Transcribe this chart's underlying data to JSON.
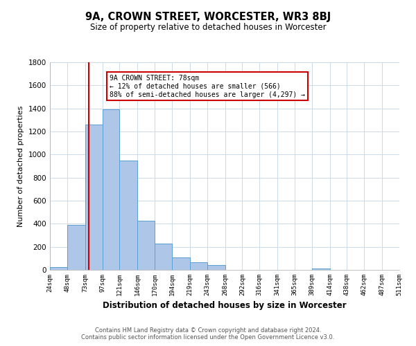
{
  "title": "9A, CROWN STREET, WORCESTER, WR3 8BJ",
  "subtitle": "Size of property relative to detached houses in Worcester",
  "xlabel": "Distribution of detached houses by size in Worcester",
  "ylabel": "Number of detached properties",
  "bin_labels": [
    "24sqm",
    "48sqm",
    "73sqm",
    "97sqm",
    "121sqm",
    "146sqm",
    "170sqm",
    "194sqm",
    "219sqm",
    "243sqm",
    "268sqm",
    "292sqm",
    "316sqm",
    "341sqm",
    "365sqm",
    "389sqm",
    "414sqm",
    "438sqm",
    "462sqm",
    "487sqm",
    "511sqm"
  ],
  "bin_edges": [
    24,
    48,
    73,
    97,
    121,
    146,
    170,
    194,
    219,
    243,
    268,
    292,
    316,
    341,
    365,
    389,
    414,
    438,
    462,
    487,
    511
  ],
  "bar_heights": [
    25,
    390,
    1260,
    1390,
    950,
    425,
    230,
    110,
    65,
    40,
    0,
    0,
    0,
    0,
    0,
    15,
    0,
    0,
    0,
    0
  ],
  "bar_color": "#aec6e8",
  "bar_edge_color": "#5a9fd4",
  "property_line_x": 78,
  "property_line_color": "#cc0000",
  "annotation_title": "9A CROWN STREET: 78sqm",
  "annotation_line1": "← 12% of detached houses are smaller (566)",
  "annotation_line2": "88% of semi-detached houses are larger (4,297) →",
  "annotation_box_color": "#ffffff",
  "annotation_box_edge": "#cc0000",
  "ylim": [
    0,
    1800
  ],
  "yticks": [
    0,
    200,
    400,
    600,
    800,
    1000,
    1200,
    1400,
    1600,
    1800
  ],
  "footer_line1": "Contains HM Land Registry data © Crown copyright and database right 2024.",
  "footer_line2": "Contains public sector information licensed under the Open Government Licence v3.0.",
  "background_color": "#ffffff",
  "grid_color": "#ccd9e8"
}
